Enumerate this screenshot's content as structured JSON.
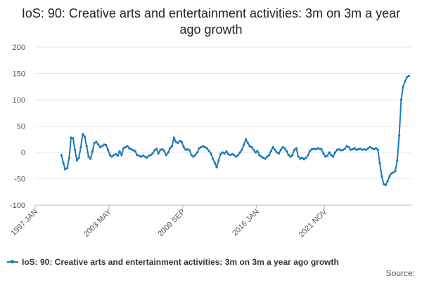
{
  "title": "IoS: 90: Creative arts and entertainment activities: 3m on 3m a year ago growth",
  "source_label": "Source:",
  "series_color": "#1a7ab7",
  "chart_data": {
    "type": "line",
    "title": "IoS: 90: Creative arts and entertainment activities: 3m on 3m a year ago growth",
    "xlabel": "",
    "ylabel": "",
    "ylim": [
      -100,
      200
    ],
    "y_ticks": [
      -100,
      -50,
      0,
      50,
      100,
      150,
      200
    ],
    "x_ticks": [
      {
        "label": "1997 JAN",
        "t": 1997.0
      },
      {
        "label": "2003 MAY",
        "t": 2003.33
      },
      {
        "label": "2009 SEP",
        "t": 2009.67
      },
      {
        "label": "2016 JAN",
        "t": 2016.0
      },
      {
        "label": "2021 NOV",
        "t": 2021.83
      }
    ],
    "grid": "horizontal",
    "legend_position": "bottom",
    "series": [
      {
        "name": "IoS: 90: Creative arts and entertainment activities: 3m on 3m a year ago growth",
        "points": [
          [
            1999.25,
            -5
          ],
          [
            1999.42,
            -20
          ],
          [
            1999.58,
            -32
          ],
          [
            1999.75,
            -30
          ],
          [
            1999.92,
            -10
          ],
          [
            2000.08,
            28
          ],
          [
            2000.25,
            27
          ],
          [
            2000.42,
            5
          ],
          [
            2000.58,
            -15
          ],
          [
            2000.75,
            -10
          ],
          [
            2000.92,
            10
          ],
          [
            2001.08,
            35
          ],
          [
            2001.25,
            30
          ],
          [
            2001.42,
            12
          ],
          [
            2001.58,
            -8
          ],
          [
            2001.75,
            -12
          ],
          [
            2001.92,
            2
          ],
          [
            2002.08,
            18
          ],
          [
            2002.25,
            20
          ],
          [
            2002.42,
            15
          ],
          [
            2002.58,
            10
          ],
          [
            2002.75,
            12
          ],
          [
            2002.92,
            15
          ],
          [
            2003.08,
            14
          ],
          [
            2003.25,
            5
          ],
          [
            2003.42,
            -5
          ],
          [
            2003.58,
            -8
          ],
          [
            2003.75,
            -5
          ],
          [
            2003.92,
            -3
          ],
          [
            2004.08,
            -6
          ],
          [
            2004.25,
            2
          ],
          [
            2004.42,
            -5
          ],
          [
            2004.58,
            8
          ],
          [
            2004.75,
            10
          ],
          [
            2004.92,
            12
          ],
          [
            2005.08,
            8
          ],
          [
            2005.25,
            6
          ],
          [
            2005.42,
            4
          ],
          [
            2005.58,
            3
          ],
          [
            2005.75,
            -5
          ],
          [
            2005.92,
            -6
          ],
          [
            2006.08,
            -8
          ],
          [
            2006.25,
            -6
          ],
          [
            2006.42,
            -8
          ],
          [
            2006.58,
            -10
          ],
          [
            2006.75,
            -6
          ],
          [
            2006.92,
            -5
          ],
          [
            2007.08,
            -2
          ],
          [
            2007.25,
            4
          ],
          [
            2007.42,
            7
          ],
          [
            2007.58,
            -2
          ],
          [
            2007.75,
            5
          ],
          [
            2007.92,
            6
          ],
          [
            2008.08,
            3
          ],
          [
            2008.25,
            -5
          ],
          [
            2008.42,
            0
          ],
          [
            2008.58,
            8
          ],
          [
            2008.75,
            12
          ],
          [
            2008.92,
            28
          ],
          [
            2009.08,
            20
          ],
          [
            2009.25,
            18
          ],
          [
            2009.42,
            22
          ],
          [
            2009.58,
            20
          ],
          [
            2009.75,
            10
          ],
          [
            2009.92,
            5
          ],
          [
            2010.08,
            6
          ],
          [
            2010.25,
            4
          ],
          [
            2010.42,
            -5
          ],
          [
            2010.58,
            -8
          ],
          [
            2010.75,
            -5
          ],
          [
            2010.92,
            0
          ],
          [
            2011.08,
            8
          ],
          [
            2011.25,
            10
          ],
          [
            2011.42,
            12
          ],
          [
            2011.58,
            10
          ],
          [
            2011.75,
            8
          ],
          [
            2011.92,
            3
          ],
          [
            2012.08,
            -2
          ],
          [
            2012.25,
            -12
          ],
          [
            2012.42,
            -20
          ],
          [
            2012.58,
            -28
          ],
          [
            2012.75,
            -15
          ],
          [
            2012.92,
            -3
          ],
          [
            2013.08,
            0
          ],
          [
            2013.25,
            -2
          ],
          [
            2013.42,
            2
          ],
          [
            2013.58,
            -3
          ],
          [
            2013.75,
            -5
          ],
          [
            2013.92,
            -3
          ],
          [
            2014.08,
            -5
          ],
          [
            2014.25,
            -8
          ],
          [
            2014.42,
            -5
          ],
          [
            2014.58,
            0
          ],
          [
            2014.75,
            5
          ],
          [
            2014.92,
            15
          ],
          [
            2015.08,
            25
          ],
          [
            2015.25,
            18
          ],
          [
            2015.42,
            12
          ],
          [
            2015.58,
            10
          ],
          [
            2015.75,
            5
          ],
          [
            2015.92,
            0
          ],
          [
            2016.08,
            3
          ],
          [
            2016.25,
            -5
          ],
          [
            2016.42,
            -8
          ],
          [
            2016.58,
            -10
          ],
          [
            2016.75,
            -12
          ],
          [
            2016.92,
            -8
          ],
          [
            2017.08,
            -5
          ],
          [
            2017.25,
            3
          ],
          [
            2017.42,
            10
          ],
          [
            2017.58,
            5
          ],
          [
            2017.75,
            0
          ],
          [
            2017.92,
            -2
          ],
          [
            2018.08,
            5
          ],
          [
            2018.25,
            10
          ],
          [
            2018.42,
            8
          ],
          [
            2018.58,
            3
          ],
          [
            2018.75,
            -5
          ],
          [
            2018.92,
            -8
          ],
          [
            2019.08,
            -5
          ],
          [
            2019.25,
            5
          ],
          [
            2019.42,
            8
          ],
          [
            2019.58,
            -8
          ],
          [
            2019.75,
            -12
          ],
          [
            2019.92,
            -10
          ],
          [
            2020.08,
            -13
          ],
          [
            2020.25,
            -10
          ],
          [
            2020.42,
            -5
          ],
          [
            2020.58,
            3
          ],
          [
            2020.75,
            6
          ],
          [
            2020.92,
            7
          ],
          [
            2021.08,
            6
          ],
          [
            2021.25,
            8
          ],
          [
            2021.42,
            7
          ],
          [
            2021.58,
            6
          ],
          [
            2021.75,
            -2
          ],
          [
            2021.92,
            -8
          ],
          [
            2022.08,
            -6
          ],
          [
            2022.25,
            0
          ],
          [
            2022.42,
            -5
          ],
          [
            2022.58,
            -8
          ],
          [
            2022.75,
            0
          ],
          [
            2022.92,
            5
          ],
          [
            2023.08,
            6
          ],
          [
            2023.25,
            4
          ],
          [
            2023.42,
            5
          ],
          [
            2023.58,
            7
          ],
          [
            2023.75,
            12
          ],
          [
            2023.92,
            10
          ],
          [
            2024.08,
            5
          ],
          [
            2024.25,
            6
          ],
          [
            2024.42,
            8
          ],
          [
            2024.58,
            5
          ],
          [
            2024.75,
            6
          ],
          [
            2024.92,
            7
          ],
          [
            2025.08,
            5
          ],
          [
            2025.25,
            6
          ],
          [
            2025.42,
            5
          ],
          [
            2025.58,
            8
          ],
          [
            2025.75,
            10
          ],
          [
            2025.92,
            8
          ],
          [
            2026.08,
            6
          ],
          [
            2026.25,
            8
          ],
          [
            2026.42,
            5
          ],
          [
            2026.58,
            -20
          ],
          [
            2026.75,
            -45
          ],
          [
            2026.92,
            -60
          ],
          [
            2027.08,
            -62
          ],
          [
            2027.25,
            -55
          ],
          [
            2027.42,
            -45
          ],
          [
            2027.58,
            -40
          ],
          [
            2027.75,
            -38
          ],
          [
            2027.92,
            -35
          ],
          [
            2028.08,
            -15
          ],
          [
            2028.25,
            32
          ],
          [
            2028.42,
            100
          ],
          [
            2028.58,
            125
          ],
          [
            2028.75,
            135
          ],
          [
            2028.92,
            143
          ],
          [
            2029.08,
            145
          ]
        ]
      }
    ]
  }
}
